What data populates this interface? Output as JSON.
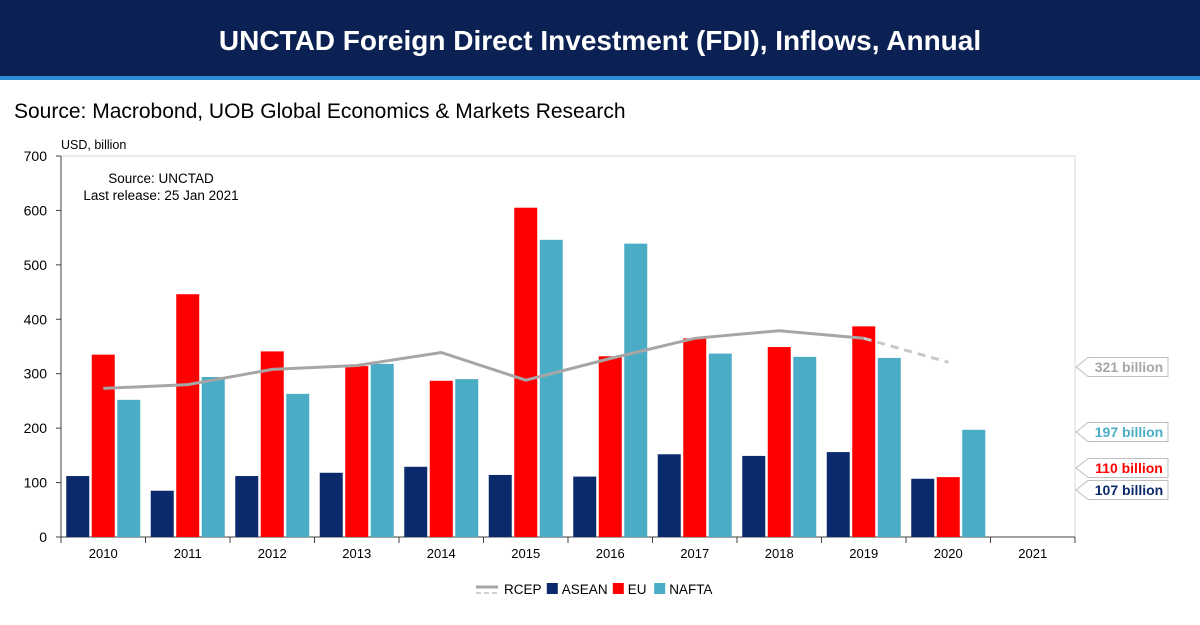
{
  "header": {
    "title": "UNCTAD Foreign Direct Investment (FDI), Inflows, Annual"
  },
  "source_line": "Source: Macrobond, UOB Global Economics & Markets Research",
  "chart_data": {
    "type": "bar",
    "y_unit_label": "USD, billion",
    "annotation": {
      "line1": "Source: UNCTAD",
      "line2": "Last release: 25 Jan 2021"
    },
    "categories": [
      "2010",
      "2011",
      "2012",
      "2013",
      "2014",
      "2015",
      "2016",
      "2017",
      "2018",
      "2019",
      "2020",
      "2021"
    ],
    "ylim": [
      0,
      700
    ],
    "yticks": [
      0,
      100,
      200,
      300,
      400,
      500,
      600,
      700
    ],
    "grid": false,
    "legend_position": "bottom",
    "series": [
      {
        "name": "ASEAN",
        "type": "bar",
        "color": "#0b2a6b",
        "values": [
          112,
          85,
          112,
          118,
          129,
          114,
          111,
          152,
          149,
          156,
          107,
          null
        ]
      },
      {
        "name": "EU",
        "type": "bar",
        "color": "#ff0000",
        "values": [
          335,
          446,
          341,
          314,
          287,
          605,
          332,
          365,
          349,
          387,
          110,
          null
        ]
      },
      {
        "name": "NAFTA",
        "type": "bar",
        "color": "#4bacc6",
        "values": [
          252,
          294,
          263,
          318,
          290,
          546,
          539,
          337,
          331,
          329,
          197,
          null
        ]
      },
      {
        "name": "RCEP",
        "type": "line",
        "color": "#a6a6a6",
        "values": [
          273,
          280,
          308,
          315,
          339,
          288,
          328,
          365,
          379,
          365,
          321,
          null
        ],
        "dashed_from_category": "2019"
      }
    ],
    "end_labels": [
      {
        "text": "321 billion",
        "value": 321,
        "color": "#a6a6a6"
      },
      {
        "text": "197 billion",
        "value": 197,
        "color": "#4bacc6"
      },
      {
        "text": "110 billion",
        "value": 110,
        "color": "#ff0000"
      },
      {
        "text": "107 billion",
        "value": 107,
        "color": "#0b2a6b"
      }
    ]
  }
}
